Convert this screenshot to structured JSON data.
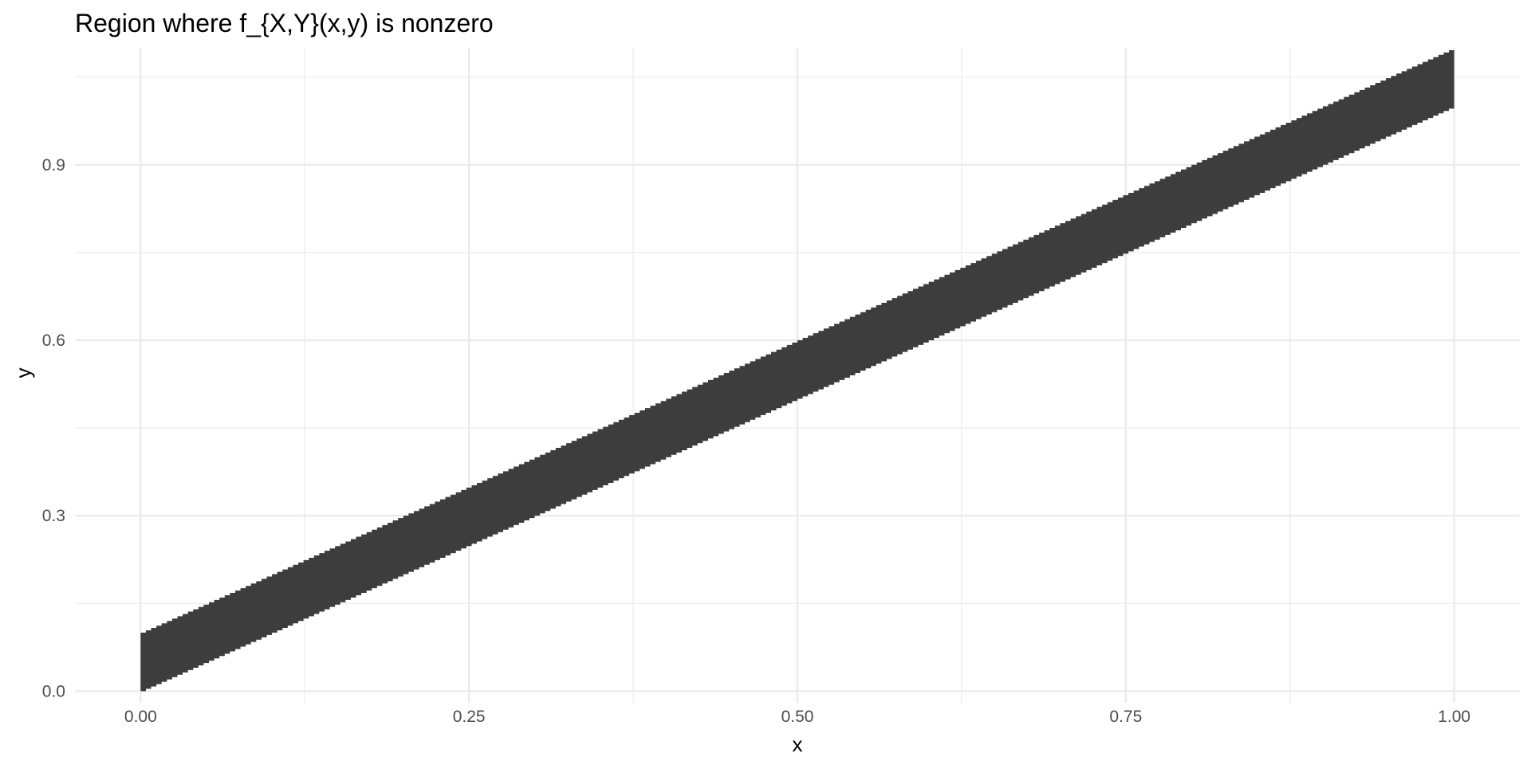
{
  "chart_data": {
    "type": "area",
    "title": "Region where f_{X,Y}(x,y) is nonzero",
    "xlabel": "x",
    "ylabel": "y",
    "xlim": [
      -0.05,
      1.05
    ],
    "ylim": [
      -0.02,
      1.1
    ],
    "x_ticks": [
      0.0,
      0.25,
      0.5,
      0.75,
      1.0
    ],
    "x_tick_labels": [
      "0.00",
      "0.25",
      "0.50",
      "0.75",
      "1.00"
    ],
    "y_ticks": [
      0.0,
      0.3,
      0.6,
      0.9
    ],
    "y_tick_labels": [
      "0.0",
      "0.3",
      "0.6",
      "0.9"
    ],
    "x_minor_ticks": [
      0.125,
      0.375,
      0.625,
      0.875
    ],
    "y_minor_ticks": [
      0.15,
      0.45,
      0.75,
      1.05
    ],
    "grid": true,
    "legend": "none",
    "region": {
      "x_start": 0.0,
      "x_end": 1.0,
      "lower": "y = x",
      "upper": "y = x + 0.1",
      "steps": 250
    },
    "fill_color": "#3d3d3d",
    "grid_color": "#ebebeb"
  }
}
